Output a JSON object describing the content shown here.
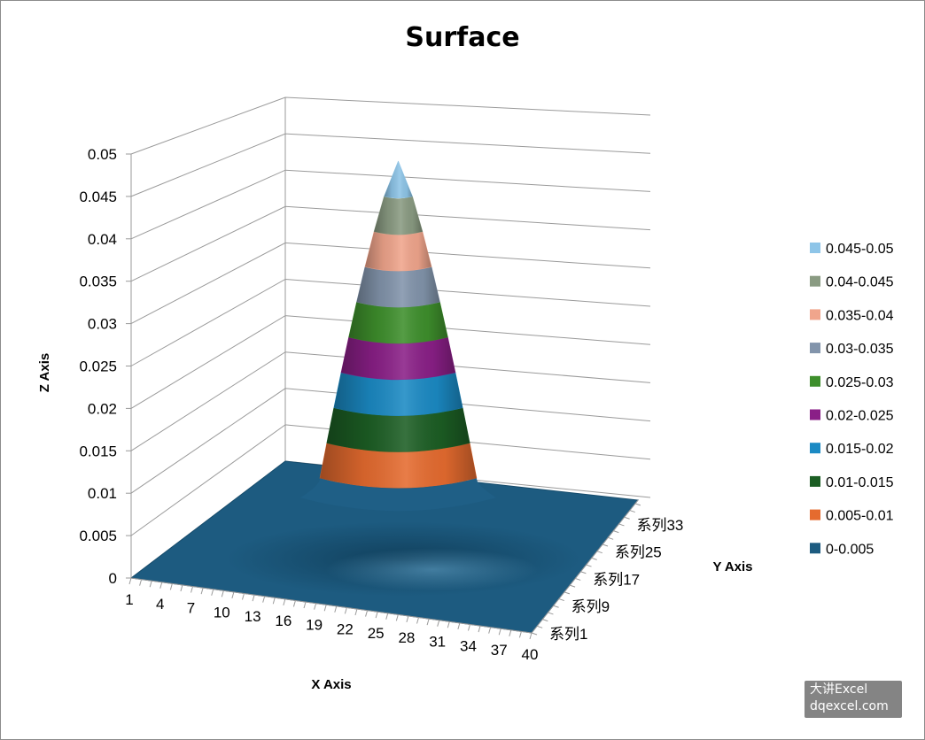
{
  "chart_data": {
    "type": "surface",
    "title": "Surface",
    "xlabel": "X Axis",
    "ylabel": "Y Axis",
    "zlabel": "Z Axis",
    "x_ticks": [
      "1",
      "4",
      "7",
      "10",
      "13",
      "16",
      "19",
      "22",
      "25",
      "28",
      "31",
      "34",
      "37",
      "40"
    ],
    "y_ticks": [
      "系列1",
      "系列9",
      "系列17",
      "系列25",
      "系列33"
    ],
    "z_ticks": [
      "0",
      "0.005",
      "0.01",
      "0.015",
      "0.02",
      "0.025",
      "0.03",
      "0.035",
      "0.04",
      "0.045",
      "0.05"
    ],
    "zlim": [
      0,
      0.05
    ],
    "x_range": [
      1,
      40
    ],
    "series_count": 40,
    "peak": {
      "x": 20.5,
      "series": 20.5,
      "z": 0.05
    },
    "legend_position": "right",
    "legend": [
      {
        "label": "0.045-0.05",
        "color": "#8ec5e8"
      },
      {
        "label": "0.04-0.045",
        "color": "#8a9b82"
      },
      {
        "label": "0.035-0.04",
        "color": "#f0a58c"
      },
      {
        "label": "0.03-0.035",
        "color": "#8294ab"
      },
      {
        "label": "0.025-0.03",
        "color": "#3e8f2c"
      },
      {
        "label": "0.02-0.025",
        "color": "#8a1f87"
      },
      {
        "label": "0.015-0.02",
        "color": "#1b8ac4"
      },
      {
        "label": "0.01-0.015",
        "color": "#1c5e24"
      },
      {
        "label": "0.005-0.01",
        "color": "#e56b2f"
      },
      {
        "label": "0-0.005",
        "color": "#1d5b80"
      }
    ],
    "grid": true
  },
  "watermark": {
    "line1": "大讲Excel",
    "line2": "dqexcel.com"
  }
}
